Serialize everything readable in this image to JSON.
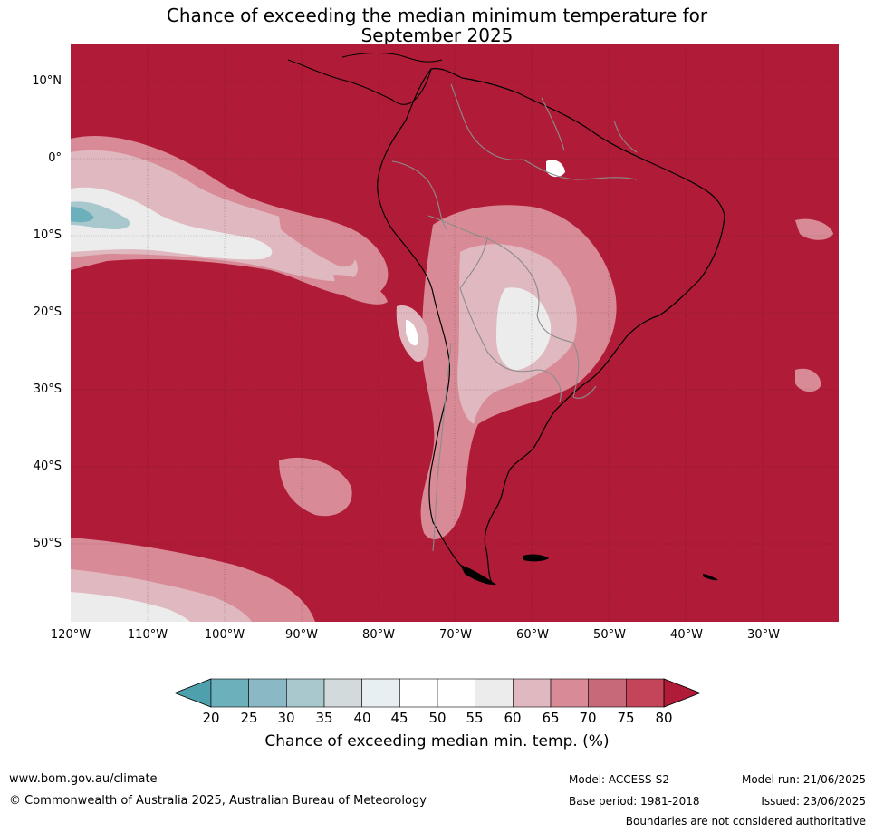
{
  "title": {
    "line1": "Chance of exceeding the median minimum temperature for",
    "line2": "September 2025"
  },
  "map": {
    "lat_labels": [
      "10°N",
      "0°",
      "10°S",
      "20°S",
      "30°S",
      "40°S",
      "50°S"
    ],
    "lon_labels": [
      "120°W",
      "110°W",
      "100°W",
      "90°W",
      "80°W",
      "70°W",
      "60°W",
      "50°W",
      "40°W",
      "30°W"
    ],
    "background_color": "#b01c37",
    "coast_color": "#000000",
    "border_color": "#8c8c8c"
  },
  "colorbar": {
    "ticks": [
      "20",
      "25",
      "30",
      "35",
      "40",
      "45",
      "50",
      "55",
      "60",
      "65",
      "70",
      "75",
      "80"
    ],
    "colors": [
      "#4fa0ad",
      "#6cb0bc",
      "#8ab8c4",
      "#a8c8ce",
      "#d2dadc",
      "#e8eff2",
      "#ffffff",
      "#ffffff",
      "#ececec",
      "#e0b8c0",
      "#d88b97",
      "#c8697a",
      "#c44559",
      "#b01c37"
    ],
    "label": "Chance of exceeding median min. temp. (%)"
  },
  "footer": {
    "website": "www.bom.gov.au/climate",
    "copyright": "© Commonwealth of Australia 2025, Australian Bureau of Meteorology",
    "model": "Model: ACCESS-S2",
    "base_period": "Base period: 1981-2018",
    "model_run": "Model run: 21/06/2025",
    "issued": "Issued: 23/06/2025",
    "disclaimer": "Boundaries are not considered authoritative"
  }
}
